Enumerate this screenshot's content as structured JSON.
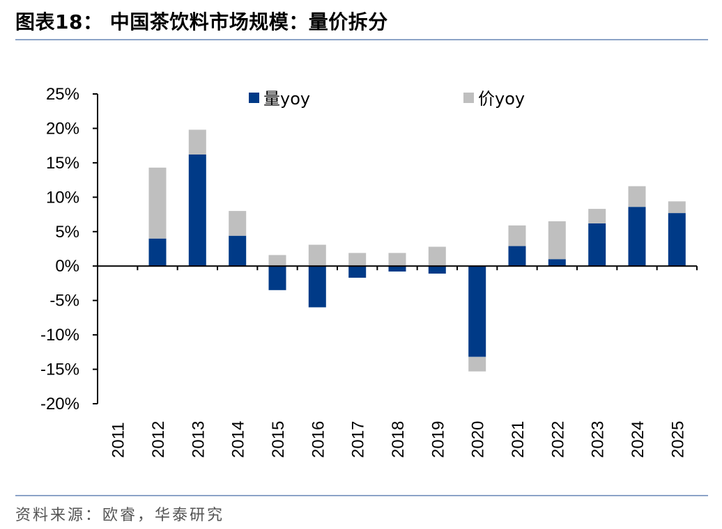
{
  "header": {
    "title": "图表18：  中国茶饮料市场规模：量价拆分"
  },
  "footer": {
    "source": "资料来源：欧睿，华泰研究"
  },
  "colors": {
    "volume": "#003a87",
    "price": "#bfbfbf",
    "rule": "#8ba3c7"
  },
  "chart_data": {
    "type": "bar",
    "stacked": true,
    "categories": [
      "2011",
      "2012",
      "2013",
      "2014",
      "2015",
      "2016",
      "2017",
      "2018",
      "2019",
      "2020",
      "2021",
      "2022",
      "2023",
      "2024",
      "2025"
    ],
    "series": [
      {
        "name": "量yoy",
        "values": [
          0,
          4.0,
          16.2,
          4.4,
          -3.5,
          -6.0,
          -1.7,
          -0.8,
          -1.1,
          -13.2,
          2.9,
          1.0,
          6.2,
          8.6,
          7.7
        ]
      },
      {
        "name": "价yoy",
        "values": [
          0,
          10.3,
          3.6,
          3.6,
          1.6,
          3.1,
          1.9,
          1.9,
          2.8,
          -2.1,
          3.0,
          5.5,
          2.1,
          3.0,
          1.7
        ]
      }
    ],
    "ylim": [
      -20,
      25
    ],
    "yticks": [
      "25%",
      "20%",
      "15%",
      "10%",
      "5%",
      "0%",
      "-5%",
      "-10%",
      "-15%",
      "-20%"
    ],
    "xlabel": "",
    "ylabel": "",
    "legend_position": "top"
  }
}
